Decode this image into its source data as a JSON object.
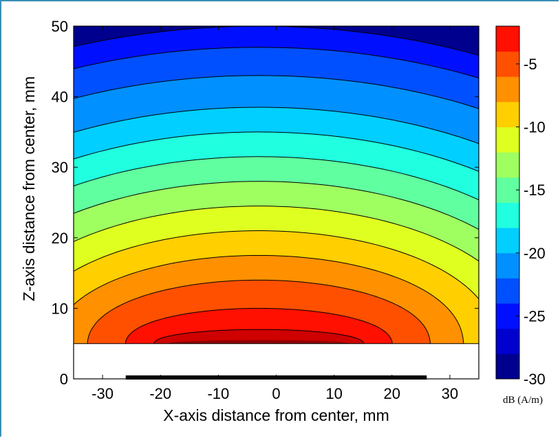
{
  "chart_data": {
    "type": "heatmap",
    "subtype": "filled-contour",
    "xlabel": "X-axis distance from center, mm",
    "ylabel": "Z-axis distance from center, mm",
    "xlim": [
      -35,
      35
    ],
    "ylim": [
      0,
      50
    ],
    "xticks": [
      "-30",
      "-20",
      "-10",
      "0",
      "10",
      "20",
      "30"
    ],
    "yticks": [
      "0",
      "10",
      "20",
      "30",
      "40",
      "50"
    ],
    "data_region": {
      "x": [
        -35,
        35
      ],
      "z": [
        5,
        50
      ]
    },
    "source_center": [
      -3,
      5
    ],
    "source_bar": {
      "x": [
        -26,
        26
      ],
      "z": 0
    },
    "colorbar": {
      "label": "dB (A/m)",
      "range": [
        -30,
        -2
      ],
      "ticks": [
        "-5",
        "-10",
        "-15",
        "-20",
        "-25",
        "-30"
      ],
      "levels": [
        -30,
        -28,
        -26,
        -24,
        -22,
        -20,
        -18,
        -16,
        -14,
        -12,
        -10,
        -8,
        -6,
        -4,
        -2
      ],
      "colors": [
        "#00008f",
        "#0000cf",
        "#0010ff",
        "#0050ff",
        "#0090ff",
        "#00cfff",
        "#20ffdf",
        "#60ff9f",
        "#9fff60",
        "#dfff20",
        "#ffcf00",
        "#ff9000",
        "#ff5000",
        "#ff1000",
        "#cf0000",
        "#8f0000"
      ]
    },
    "contour_levels": [
      -4,
      -6,
      -8,
      -10,
      -12,
      -14,
      -16,
      -18,
      -20,
      -22,
      -24,
      -26,
      -28
    ],
    "contour_crossings_z_at_x0": [
      7,
      10,
      14,
      17.5,
      21,
      24.5,
      28,
      31.5,
      35,
      38.5,
      43,
      47,
      50
    ],
    "grid": false
  }
}
